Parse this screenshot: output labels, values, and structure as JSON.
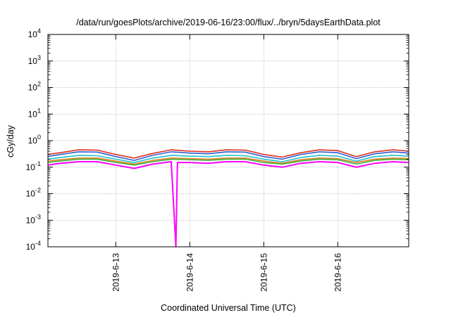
{
  "chart_data": {
    "type": "line",
    "title": "/data/run/goesPlots/archive/2019-06-16/23:00/flux/../bryn/5daysEarthData.plot",
    "xlabel": "Coordinated Universal Time (UTC)",
    "ylabel": "cGy/day",
    "yscale": "log",
    "ylim": [
      0.0001,
      10000
    ],
    "xlim": [
      "2019-06-12 02:00",
      "2019-06-16 23:00"
    ],
    "grid": true,
    "legend": "none",
    "x_ticks": [
      {
        "label": "2019-6-13",
        "date": "2019-06-13 00:00"
      },
      {
        "label": "2019-6-14",
        "date": "2019-06-14 00:00"
      },
      {
        "label": "2019-6-15",
        "date": "2019-06-15 00:00"
      },
      {
        "label": "2019-6-16",
        "date": "2019-06-16 00:00"
      }
    ],
    "y_ticks": [
      {
        "base": "10",
        "exp": "-4",
        "value": 0.0001
      },
      {
        "base": "10",
        "exp": "-3",
        "value": 0.001
      },
      {
        "base": "10",
        "exp": "-2",
        "value": 0.01
      },
      {
        "base": "10",
        "exp": "-1",
        "value": 0.1
      },
      {
        "base": "10",
        "exp": "0",
        "value": 1
      },
      {
        "base": "10",
        "exp": "1",
        "value": 10
      },
      {
        "base": "10",
        "exp": "2",
        "value": 100
      },
      {
        "base": "10",
        "exp": "3",
        "value": 1000
      },
      {
        "base": "10",
        "exp": "4",
        "value": 10000
      }
    ],
    "series": [
      {
        "color": "#e03020",
        "x": [
          "2019-06-12 02:00",
          "2019-06-12 06:00",
          "2019-06-12 12:00",
          "2019-06-12 18:00",
          "2019-06-13 00:00",
          "2019-06-13 06:00",
          "2019-06-13 12:00",
          "2019-06-13 18:00",
          "2019-06-14 00:00",
          "2019-06-14 06:00",
          "2019-06-14 12:00",
          "2019-06-14 18:00",
          "2019-06-15 00:00",
          "2019-06-15 06:00",
          "2019-06-15 12:00",
          "2019-06-15 18:00",
          "2019-06-16 00:00",
          "2019-06-16 06:00",
          "2019-06-16 12:00",
          "2019-06-16 18:00",
          "2019-06-16 23:00"
        ],
        "y": [
          0.3,
          0.35,
          0.45,
          0.44,
          0.3,
          0.22,
          0.33,
          0.45,
          0.4,
          0.38,
          0.45,
          0.44,
          0.3,
          0.24,
          0.35,
          0.45,
          0.42,
          0.25,
          0.38,
          0.45,
          0.4
        ]
      },
      {
        "color": "#3060d0",
        "x": [
          "2019-06-12 02:00",
          "2019-06-12 06:00",
          "2019-06-12 12:00",
          "2019-06-12 18:00",
          "2019-06-13 00:00",
          "2019-06-13 06:00",
          "2019-06-13 12:00",
          "2019-06-13 18:00",
          "2019-06-14 00:00",
          "2019-06-14 06:00",
          "2019-06-14 12:00",
          "2019-06-14 18:00",
          "2019-06-15 00:00",
          "2019-06-15 06:00",
          "2019-06-15 12:00",
          "2019-06-15 18:00",
          "2019-06-16 00:00",
          "2019-06-16 06:00",
          "2019-06-16 12:00",
          "2019-06-16 18:00",
          "2019-06-16 23:00"
        ],
        "y": [
          0.25,
          0.3,
          0.38,
          0.37,
          0.25,
          0.18,
          0.28,
          0.38,
          0.34,
          0.32,
          0.38,
          0.37,
          0.25,
          0.2,
          0.3,
          0.38,
          0.35,
          0.21,
          0.32,
          0.38,
          0.34
        ]
      },
      {
        "color": "#20c0d0",
        "x": [
          "2019-06-12 02:00",
          "2019-06-12 06:00",
          "2019-06-12 12:00",
          "2019-06-12 18:00",
          "2019-06-13 00:00",
          "2019-06-13 06:00",
          "2019-06-13 12:00",
          "2019-06-13 18:00",
          "2019-06-14 00:00",
          "2019-06-14 06:00",
          "2019-06-14 12:00",
          "2019-06-14 18:00",
          "2019-06-15 00:00",
          "2019-06-15 06:00",
          "2019-06-15 12:00",
          "2019-06-15 18:00",
          "2019-06-16 00:00",
          "2019-06-16 06:00",
          "2019-06-16 12:00",
          "2019-06-16 18:00",
          "2019-06-16 23:00"
        ],
        "y": [
          0.2,
          0.23,
          0.28,
          0.27,
          0.2,
          0.15,
          0.22,
          0.28,
          0.26,
          0.25,
          0.28,
          0.27,
          0.2,
          0.16,
          0.23,
          0.28,
          0.26,
          0.17,
          0.25,
          0.28,
          0.26
        ]
      },
      {
        "color": "#e08020",
        "x": [
          "2019-06-12 02:00",
          "2019-06-12 06:00",
          "2019-06-12 12:00",
          "2019-06-12 18:00",
          "2019-06-13 00:00",
          "2019-06-13 06:00",
          "2019-06-13 12:00",
          "2019-06-13 18:00",
          "2019-06-14 00:00",
          "2019-06-14 06:00",
          "2019-06-14 12:00",
          "2019-06-14 18:00",
          "2019-06-15 00:00",
          "2019-06-15 06:00",
          "2019-06-15 12:00",
          "2019-06-15 18:00",
          "2019-06-16 00:00",
          "2019-06-16 06:00",
          "2019-06-16 12:00",
          "2019-06-16 18:00",
          "2019-06-16 23:00"
        ],
        "y": [
          0.17,
          0.19,
          0.22,
          0.22,
          0.17,
          0.13,
          0.18,
          0.22,
          0.21,
          0.2,
          0.22,
          0.22,
          0.17,
          0.14,
          0.19,
          0.22,
          0.21,
          0.15,
          0.2,
          0.22,
          0.21
        ]
      },
      {
        "color": "#40b040",
        "x": [
          "2019-06-12 02:00",
          "2019-06-12 06:00",
          "2019-06-12 12:00",
          "2019-06-12 18:00",
          "2019-06-13 00:00",
          "2019-06-13 06:00",
          "2019-06-13 12:00",
          "2019-06-13 18:00",
          "2019-06-14 00:00",
          "2019-06-14 06:00",
          "2019-06-14 12:00",
          "2019-06-14 18:00",
          "2019-06-15 00:00",
          "2019-06-15 06:00",
          "2019-06-15 12:00",
          "2019-06-15 18:00",
          "2019-06-16 00:00",
          "2019-06-16 06:00",
          "2019-06-16 12:00",
          "2019-06-16 18:00",
          "2019-06-16 23:00"
        ],
        "y": [
          0.15,
          0.17,
          0.2,
          0.2,
          0.15,
          0.12,
          0.16,
          0.2,
          0.19,
          0.18,
          0.2,
          0.2,
          0.15,
          0.13,
          0.17,
          0.2,
          0.19,
          0.13,
          0.18,
          0.2,
          0.19
        ]
      },
      {
        "color": "#ff00ff",
        "x": [
          "2019-06-12 02:00",
          "2019-06-12 06:00",
          "2019-06-12 12:00",
          "2019-06-12 18:00",
          "2019-06-13 00:00",
          "2019-06-13 06:00",
          "2019-06-13 12:00",
          "2019-06-13 18:00",
          "2019-06-13 19:30",
          "2019-06-13 20:00",
          "2019-06-13 21:00",
          "2019-06-14 00:00",
          "2019-06-14 06:00",
          "2019-06-14 12:00",
          "2019-06-14 18:00",
          "2019-06-15 00:00",
          "2019-06-15 06:00",
          "2019-06-15 12:00",
          "2019-06-15 18:00",
          "2019-06-16 00:00",
          "2019-06-16 06:00",
          "2019-06-16 12:00",
          "2019-06-16 18:00",
          "2019-06-16 23:00"
        ],
        "y": [
          0.12,
          0.14,
          0.16,
          0.16,
          0.12,
          0.09,
          0.13,
          0.16,
          0.0001,
          0.15,
          0.15,
          0.15,
          0.14,
          0.16,
          0.16,
          0.12,
          0.1,
          0.14,
          0.16,
          0.15,
          0.1,
          0.14,
          0.16,
          0.15
        ]
      }
    ]
  }
}
